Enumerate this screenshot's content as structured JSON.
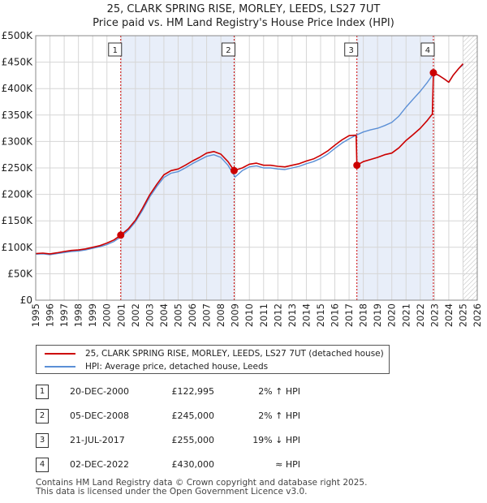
{
  "title_line1": "25, CLARK SPRING RISE, MORLEY, LEEDS, LS27 7UT",
  "title_line2": "Price paid vs. HM Land Registry's House Price Index (HPI)",
  "legend": {
    "property_label": "25, CLARK SPRING RISE, MORLEY, LEEDS, LS27 7UT (detached house)",
    "hpi_label": "HPI: Average price, detached house, Leeds"
  },
  "transactions": [
    {
      "num": "1",
      "date": "20-DEC-2000",
      "price": "£122,995",
      "hpi": "2% ↑ HPI"
    },
    {
      "num": "2",
      "date": "05-DEC-2008",
      "price": "£245,000",
      "hpi": "2% ↑ HPI"
    },
    {
      "num": "3",
      "date": "21-JUL-2017",
      "price": "£255,000",
      "hpi": "19% ↓ HPI"
    },
    {
      "num": "4",
      "date": "02-DEC-2022",
      "price": "£430,000",
      "hpi": "≈ HPI"
    }
  ],
  "footer_line1": "Contains HM Land Registry data © Crown copyright and database right 2025.",
  "footer_line2": "This data is licensed under the Open Government Licence v3.0.",
  "colors": {
    "property": "#cc0000",
    "hpi": "#5b8fd6",
    "shade": "#e8eef9",
    "grid": "#d6d6d6",
    "marker_line": "#cc0000",
    "hatch": "#bbbbbb"
  },
  "chart_data": {
    "type": "line",
    "title": "Price paid vs. HM Land Registry's House Price Index (HPI)",
    "xlabel": "",
    "ylabel": "",
    "xlim": [
      1995,
      2026
    ],
    "ylim": [
      0,
      500000
    ],
    "y_ticks": [
      0,
      50000,
      100000,
      150000,
      200000,
      250000,
      300000,
      350000,
      400000,
      450000,
      500000
    ],
    "y_tick_labels": [
      "£0",
      "£50K",
      "£100K",
      "£150K",
      "£200K",
      "£250K",
      "£300K",
      "£350K",
      "£400K",
      "£450K",
      "£500K"
    ],
    "x_ticks": [
      1995,
      1996,
      1997,
      1998,
      1999,
      2000,
      2001,
      2002,
      2003,
      2004,
      2005,
      2006,
      2007,
      2008,
      2009,
      2010,
      2011,
      2012,
      2013,
      2014,
      2015,
      2016,
      2017,
      2018,
      2019,
      2020,
      2021,
      2022,
      2023,
      2024,
      2025,
      2026
    ],
    "x_tick_labels": [
      "1995",
      "1996",
      "1997",
      "1998",
      "1999",
      "2000",
      "2001",
      "2002",
      "2003",
      "2004",
      "2005",
      "2006",
      "2007",
      "2008",
      "2009",
      "2010",
      "2011",
      "2012",
      "2013",
      "2014",
      "2015",
      "2016",
      "2017",
      "2018",
      "2019",
      "2020",
      "2021",
      "2022",
      "2023",
      "2024",
      "2025",
      "2026"
    ],
    "shaded_ranges": [
      [
        2000.97,
        2008.93
      ],
      [
        2017.55,
        2022.92
      ]
    ],
    "forecast_start": 2025.0,
    "markers": [
      {
        "label": "1",
        "x": 2000.97,
        "y": 122995
      },
      {
        "label": "2",
        "x": 2008.93,
        "y": 245000
      },
      {
        "label": "3",
        "x": 2017.55,
        "y": 255000
      },
      {
        "label": "4",
        "x": 2022.92,
        "y": 430000
      }
    ],
    "series": [
      {
        "name": "HPI: Average price, detached house, Leeds",
        "x": [
          1995.0,
          1995.5,
          1996.0,
          1996.5,
          1997.0,
          1997.5,
          1998.0,
          1998.5,
          1999.0,
          1999.5,
          2000.0,
          2000.5,
          2001.0,
          2001.5,
          2002.0,
          2002.5,
          2003.0,
          2003.5,
          2004.0,
          2004.5,
          2005.0,
          2005.5,
          2006.0,
          2006.5,
          2007.0,
          2007.5,
          2008.0,
          2008.5,
          2009.0,
          2009.5,
          2010.0,
          2010.5,
          2011.0,
          2011.5,
          2012.0,
          2012.5,
          2013.0,
          2013.5,
          2014.0,
          2014.5,
          2015.0,
          2015.5,
          2016.0,
          2016.5,
          2017.0,
          2017.5,
          2018.0,
          2018.5,
          2019.0,
          2019.5,
          2020.0,
          2020.5,
          2021.0,
          2021.5,
          2022.0,
          2022.5,
          2022.92,
          2023.3,
          2023.7,
          2024.0,
          2024.3,
          2024.7,
          2025.0
        ],
        "values": [
          87000,
          87500,
          86000,
          88000,
          90000,
          92000,
          93000,
          95000,
          98000,
          101000,
          105000,
          111000,
          120000,
          132000,
          148000,
          170000,
          195000,
          215000,
          232000,
          240000,
          243000,
          250000,
          258000,
          265000,
          272000,
          275000,
          270000,
          255000,
          233000,
          245000,
          252000,
          254000,
          250000,
          250000,
          248000,
          247000,
          250000,
          253000,
          258000,
          262000,
          268000,
          276000,
          287000,
          297000,
          305000,
          312000,
          318000,
          322000,
          325000,
          330000,
          336000,
          348000,
          365000,
          380000,
          395000,
          412000,
          428000,
          425000,
          418000,
          412000,
          425000,
          438000,
          445000
        ]
      },
      {
        "name": "25, CLARK SPRING RISE, MORLEY, LEEDS, LS27 7UT (detached house)",
        "x": [
          1995.0,
          1995.5,
          1996.0,
          1996.5,
          1997.0,
          1997.5,
          1998.0,
          1998.5,
          1999.0,
          1999.5,
          2000.0,
          2000.5,
          2000.97,
          2001.5,
          2002.0,
          2002.5,
          2003.0,
          2003.5,
          2004.0,
          2004.5,
          2005.0,
          2005.5,
          2006.0,
          2006.5,
          2007.0,
          2007.5,
          2008.0,
          2008.5,
          2008.93,
          2009.5,
          2010.0,
          2010.5,
          2011.0,
          2011.5,
          2012.0,
          2012.5,
          2013.0,
          2013.5,
          2014.0,
          2014.5,
          2015.0,
          2015.5,
          2016.0,
          2016.5,
          2017.0,
          2017.5,
          2017.55,
          2018.0,
          2018.5,
          2019.0,
          2019.5,
          2020.0,
          2020.5,
          2021.0,
          2021.5,
          2022.0,
          2022.5,
          2022.85,
          2022.92,
          2023.3,
          2023.7,
          2024.0,
          2024.3,
          2024.7,
          2025.0
        ],
        "values": [
          88000,
          89000,
          87500,
          89500,
          92000,
          94000,
          95000,
          97000,
          100000,
          103000,
          108000,
          114000,
          122995,
          135000,
          151000,
          174000,
          199000,
          219000,
          237000,
          245000,
          248000,
          255000,
          263000,
          270000,
          278000,
          281000,
          276000,
          262000,
          245000,
          250000,
          257000,
          259000,
          255000,
          255000,
          253000,
          252000,
          255000,
          258000,
          263000,
          267000,
          274000,
          282000,
          293000,
          303000,
          311000,
          312000,
          255000,
          262000,
          266000,
          270000,
          275000,
          278000,
          288000,
          302000,
          313000,
          325000,
          340000,
          352000,
          430000,
          425000,
          418000,
          412000,
          425000,
          438000,
          447000
        ]
      }
    ]
  }
}
